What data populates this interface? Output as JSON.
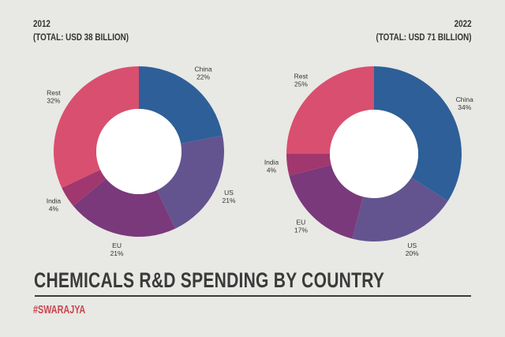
{
  "chart_data": [
    {
      "type": "pie",
      "variant": "donut",
      "title": "2012",
      "subtitle": "(TOTAL: USD 38 BILLION)",
      "categories": [
        "China",
        "US",
        "EU",
        "India",
        "Rest"
      ],
      "values": [
        22,
        21,
        21,
        4,
        32
      ],
      "unit": "%",
      "colors": [
        "#2e5f98",
        "#63548f",
        "#7a397b",
        "#a1376f",
        "#d94f6f"
      ]
    },
    {
      "type": "pie",
      "variant": "donut",
      "title": "2022",
      "subtitle": "(TOTAL: USD 71 BILLION)",
      "categories": [
        "China",
        "US",
        "EU",
        "India",
        "Rest"
      ],
      "values": [
        34,
        20,
        17,
        4,
        25
      ],
      "unit": "%",
      "colors": [
        "#2e5f98",
        "#63548f",
        "#7a397b",
        "#a1376f",
        "#d94f6f"
      ]
    }
  ],
  "footer": {
    "title": "CHEMICALS R&D SPENDING BY COUNTRY",
    "brand": "#SWARAJYA",
    "brand_color": "#c9464f"
  }
}
